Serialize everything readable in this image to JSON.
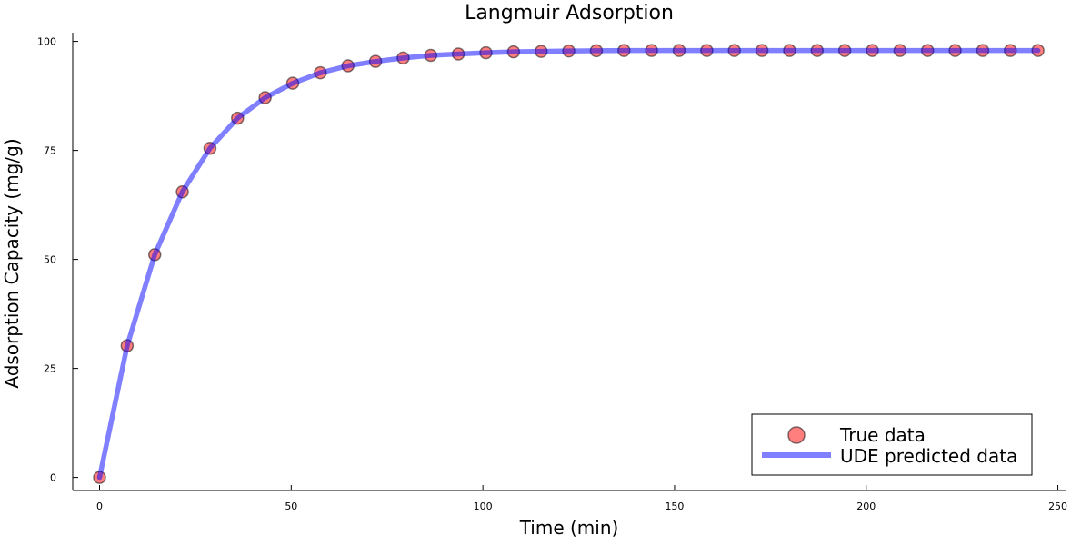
{
  "chart_data": {
    "type": "line",
    "title": "Langmuir Adsorption",
    "xlabel": "Time (min)",
    "ylabel": "Adsorption Capacity (mg/g)",
    "xlim": [
      -7,
      252
    ],
    "ylim": [
      -3,
      102
    ],
    "xticks": [
      0,
      50,
      100,
      150,
      200,
      250
    ],
    "yticks": [
      0,
      25,
      50,
      75,
      100
    ],
    "grid": false,
    "legend_position": "bottom-right",
    "series": [
      {
        "name": "True data",
        "kind": "scatter",
        "color": "#ff0000",
        "x": [
          0,
          7.2,
          14.4,
          21.6,
          28.8,
          36.0,
          43.2,
          50.4,
          57.6,
          64.8,
          72.0,
          79.2,
          86.4,
          93.6,
          100.8,
          108.0,
          115.2,
          122.4,
          129.6,
          136.8,
          144.0,
          151.2,
          158.4,
          165.6,
          172.8,
          180.0,
          187.2,
          194.4,
          201.6,
          208.8,
          216.0,
          223.2,
          230.4,
          237.6,
          244.8
        ],
        "y": [
          0,
          30.2,
          51.1,
          65.5,
          75.5,
          82.4,
          87.1,
          90.4,
          92.8,
          94.4,
          95.4,
          96.2,
          96.8,
          97.1,
          97.4,
          97.6,
          97.7,
          97.8,
          97.85,
          97.9,
          97.9,
          97.9,
          97.9,
          97.9,
          97.9,
          97.9,
          97.9,
          97.9,
          97.9,
          97.9,
          97.9,
          97.9,
          97.9,
          97.9,
          97.9
        ]
      },
      {
        "name": "UDE predicted data",
        "kind": "line",
        "color": "#0000ff",
        "x": [
          0,
          7.2,
          14.4,
          21.6,
          28.8,
          36.0,
          43.2,
          50.4,
          57.6,
          64.8,
          72.0,
          79.2,
          86.4,
          93.6,
          100.8,
          108.0,
          115.2,
          122.4,
          129.6,
          136.8,
          144.0,
          151.2,
          158.4,
          165.6,
          172.8,
          180.0,
          187.2,
          194.4,
          201.6,
          208.8,
          216.0,
          223.2,
          230.4,
          237.6,
          244.8
        ],
        "y": [
          0,
          30.2,
          51.1,
          65.5,
          75.5,
          82.4,
          87.1,
          90.4,
          92.8,
          94.4,
          95.4,
          96.2,
          96.8,
          97.1,
          97.4,
          97.6,
          97.7,
          97.8,
          97.85,
          97.9,
          97.9,
          97.9,
          97.9,
          97.9,
          97.9,
          97.9,
          97.9,
          97.9,
          97.9,
          97.9,
          97.9,
          97.9,
          97.9,
          97.9,
          97.9
        ]
      }
    ]
  }
}
